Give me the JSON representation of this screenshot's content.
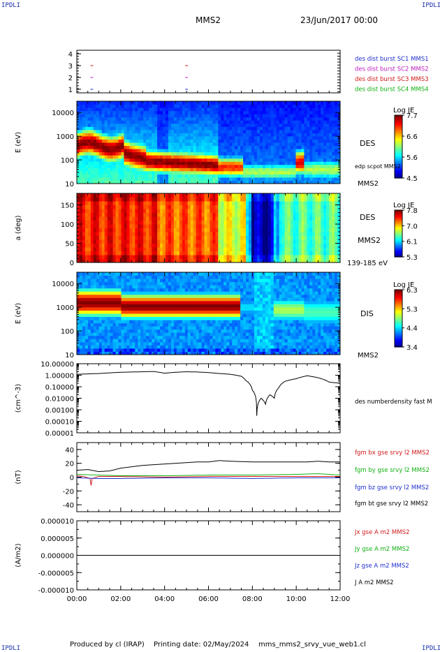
{
  "header": {
    "logo_left": "IPDLI",
    "logo_right": "IPDLI",
    "spacecraft": "MMS2",
    "date": "23/Jun/2017 00:00"
  },
  "footer": {
    "produced_by": "Produced by cl (IRAP)",
    "printing_date": "Printing date: 02/May/2024",
    "product": "mms_mms2_srvy_vue_web1.cl",
    "logo_left": "IPDLI",
    "logo_right": "IPDLI"
  },
  "time_axis": {
    "range_hours": [
      0,
      12
    ],
    "tick_labels": [
      "00:00",
      "02:00",
      "04:00",
      "06:00",
      "08:00",
      "10:00",
      "12:00"
    ]
  },
  "chart_data": [
    {
      "id": "burst",
      "type": "scatter",
      "ylim": [
        0.7,
        4.3
      ],
      "yticks": [
        "1",
        "2",
        "3",
        "4"
      ],
      "series": [
        {
          "name": "des dist burst SC1 MMS1",
          "color": "#1f2fcf",
          "level": 1,
          "x": [
            0.68,
            5.0
          ]
        },
        {
          "name": "des dist burst SC2 MMS2",
          "color": "#c020c0",
          "level": 2,
          "x": [
            0.68,
            5.0
          ]
        },
        {
          "name": "des dist burst SC3 MMS3",
          "color": "#d01818",
          "level": 3,
          "x": [
            0.68,
            5.0
          ]
        },
        {
          "name": "des dist burst SC4 MMS4",
          "color": "#10b010",
          "level": 4,
          "x": []
        }
      ]
    },
    {
      "id": "des_energy",
      "type": "heatmap",
      "ylabel": "E (eV)",
      "yscale": "log",
      "ylim": [
        10,
        30000
      ],
      "yticks": [
        "10",
        "100",
        "1000",
        "10000"
      ],
      "side_labels": [
        "DES",
        "edp scpot MMS2",
        "MMS2"
      ],
      "colorbar": {
        "title": "Log JE",
        "ticks": [
          "7.7",
          "6.6",
          "5.6",
          "4.5"
        ],
        "range": [
          4.5,
          7.7
        ]
      }
    },
    {
      "id": "des_pitch",
      "type": "heatmap",
      "ylabel": "a (deg)",
      "ylim": [
        0,
        180
      ],
      "yticks": [
        "0",
        "50",
        "100",
        "150"
      ],
      "side_labels": [
        "DES",
        "MMS2",
        "139-185 eV"
      ],
      "colorbar": {
        "title": "Log JE",
        "ticks": [
          "7.8",
          "7.0",
          "6.1",
          "5.3"
        ],
        "range": [
          5.3,
          7.8
        ]
      }
    },
    {
      "id": "dis_energy",
      "type": "heatmap",
      "ylabel": "E (eV)",
      "yscale": "log",
      "ylim": [
        10,
        30000
      ],
      "yticks": [
        "10",
        "100",
        "1000",
        "10000"
      ],
      "side_labels": [
        "DIS",
        "MMS2"
      ],
      "colorbar": {
        "title": "Log JE",
        "ticks": [
          "6.3",
          "5.3",
          "4.4",
          "3.4"
        ],
        "range": [
          3.4,
          6.3
        ]
      }
    },
    {
      "id": "density",
      "type": "line",
      "ylabel": "(cm^-3)",
      "yscale": "log",
      "ylim": [
        1e-05,
        10
      ],
      "yticks": [
        "10.00000",
        "1.00000",
        "0.10000",
        "0.01000",
        "0.00100",
        "0.00010",
        "0.00001"
      ],
      "series": [
        {
          "name": "des numberdensity fast M",
          "color": "#000000",
          "x": [
            0,
            0.5,
            1.0,
            1.5,
            2.0,
            2.5,
            3.0,
            3.5,
            4.0,
            4.5,
            5.0,
            5.5,
            6.0,
            6.5,
            7.0,
            7.5,
            7.7,
            8.0,
            8.2,
            8.4,
            8.6,
            8.8,
            9.0,
            9.2,
            9.5,
            10.0,
            10.5,
            11.0,
            11.5,
            12.0
          ],
          "y": [
            1.2,
            1.3,
            1.4,
            1.6,
            1.8,
            1.9,
            2.0,
            2.1,
            1.5,
            1.8,
            2.0,
            1.9,
            1.7,
            1.4,
            1.2,
            0.8,
            0.35,
            0.05,
            0.0003,
            0.01,
            0.003,
            0.02,
            0.01,
            0.08,
            0.3,
            0.5,
            0.9,
            0.6,
            0.25,
            0.2
          ]
        }
      ]
    },
    {
      "id": "magnetic_field",
      "type": "line",
      "ylabel": "(nT)",
      "ylim": [
        -50,
        50
      ],
      "yticks": [
        "-40",
        "-20",
        "0",
        "20",
        "40"
      ],
      "series": [
        {
          "name": "fgm bx gse srvy l2 MMS2",
          "color": "#d01818",
          "x": [
            0,
            0.3,
            0.6,
            0.65,
            0.7,
            1,
            2,
            4,
            6,
            8,
            10,
            12
          ],
          "y": [
            2,
            1,
            -2,
            -12,
            -2,
            1,
            1,
            0,
            1,
            1,
            1,
            1
          ]
        },
        {
          "name": "fgm by gse srvy l2 MMS2",
          "color": "#10b010",
          "x": [
            0,
            1,
            2,
            4,
            6,
            8,
            10,
            11,
            12
          ],
          "y": [
            4,
            3,
            2,
            2,
            3,
            3,
            4,
            5,
            3
          ]
        },
        {
          "name": "fgm bz gse srvy l2 MMS2",
          "color": "#1f2fcf",
          "x": [
            0,
            1,
            2,
            4,
            6,
            8,
            10,
            12
          ],
          "y": [
            -1,
            -2,
            -2,
            -1,
            -1,
            -2,
            -1,
            -1
          ]
        },
        {
          "name": "fgm bt gse srvy l2 MMS2",
          "color": "#000000",
          "x": [
            0,
            0.5,
            1.0,
            1.5,
            2.0,
            2.5,
            3.0,
            3.5,
            4.0,
            4.5,
            5.0,
            5.5,
            6.0,
            6.5,
            7.0,
            8.0,
            9.0,
            10.0,
            10.5,
            11.0,
            11.5,
            12.0
          ],
          "y": [
            10,
            11,
            8,
            9,
            13,
            15,
            17,
            18,
            19,
            20,
            21,
            22,
            22,
            24,
            23,
            22,
            22,
            22,
            22,
            23,
            22,
            22
          ]
        }
      ]
    },
    {
      "id": "current_density",
      "type": "line",
      "ylabel": "(A/m2)",
      "ylim": [
        -1e-05,
        1e-05
      ],
      "yticks": [
        "0.000010",
        "0.000005",
        "0.000000",
        "-0.000005",
        "-0.000010"
      ],
      "series": [
        {
          "name": "Jx gse A m2 MMS2",
          "color": "#d01818",
          "x": [
            0,
            12
          ],
          "y": [
            0,
            0
          ]
        },
        {
          "name": "Jy gse A m2 MMS2",
          "color": "#10b010",
          "x": [
            0,
            12
          ],
          "y": [
            0,
            0
          ]
        },
        {
          "name": "Jz gse A m2 MMS2",
          "color": "#1f2fcf",
          "x": [
            0,
            12
          ],
          "y": [
            0,
            0
          ]
        },
        {
          "name": "J A m2 MMS2",
          "color": "#000000",
          "x": [
            0,
            12
          ],
          "y": [
            0,
            0
          ]
        }
      ]
    }
  ]
}
